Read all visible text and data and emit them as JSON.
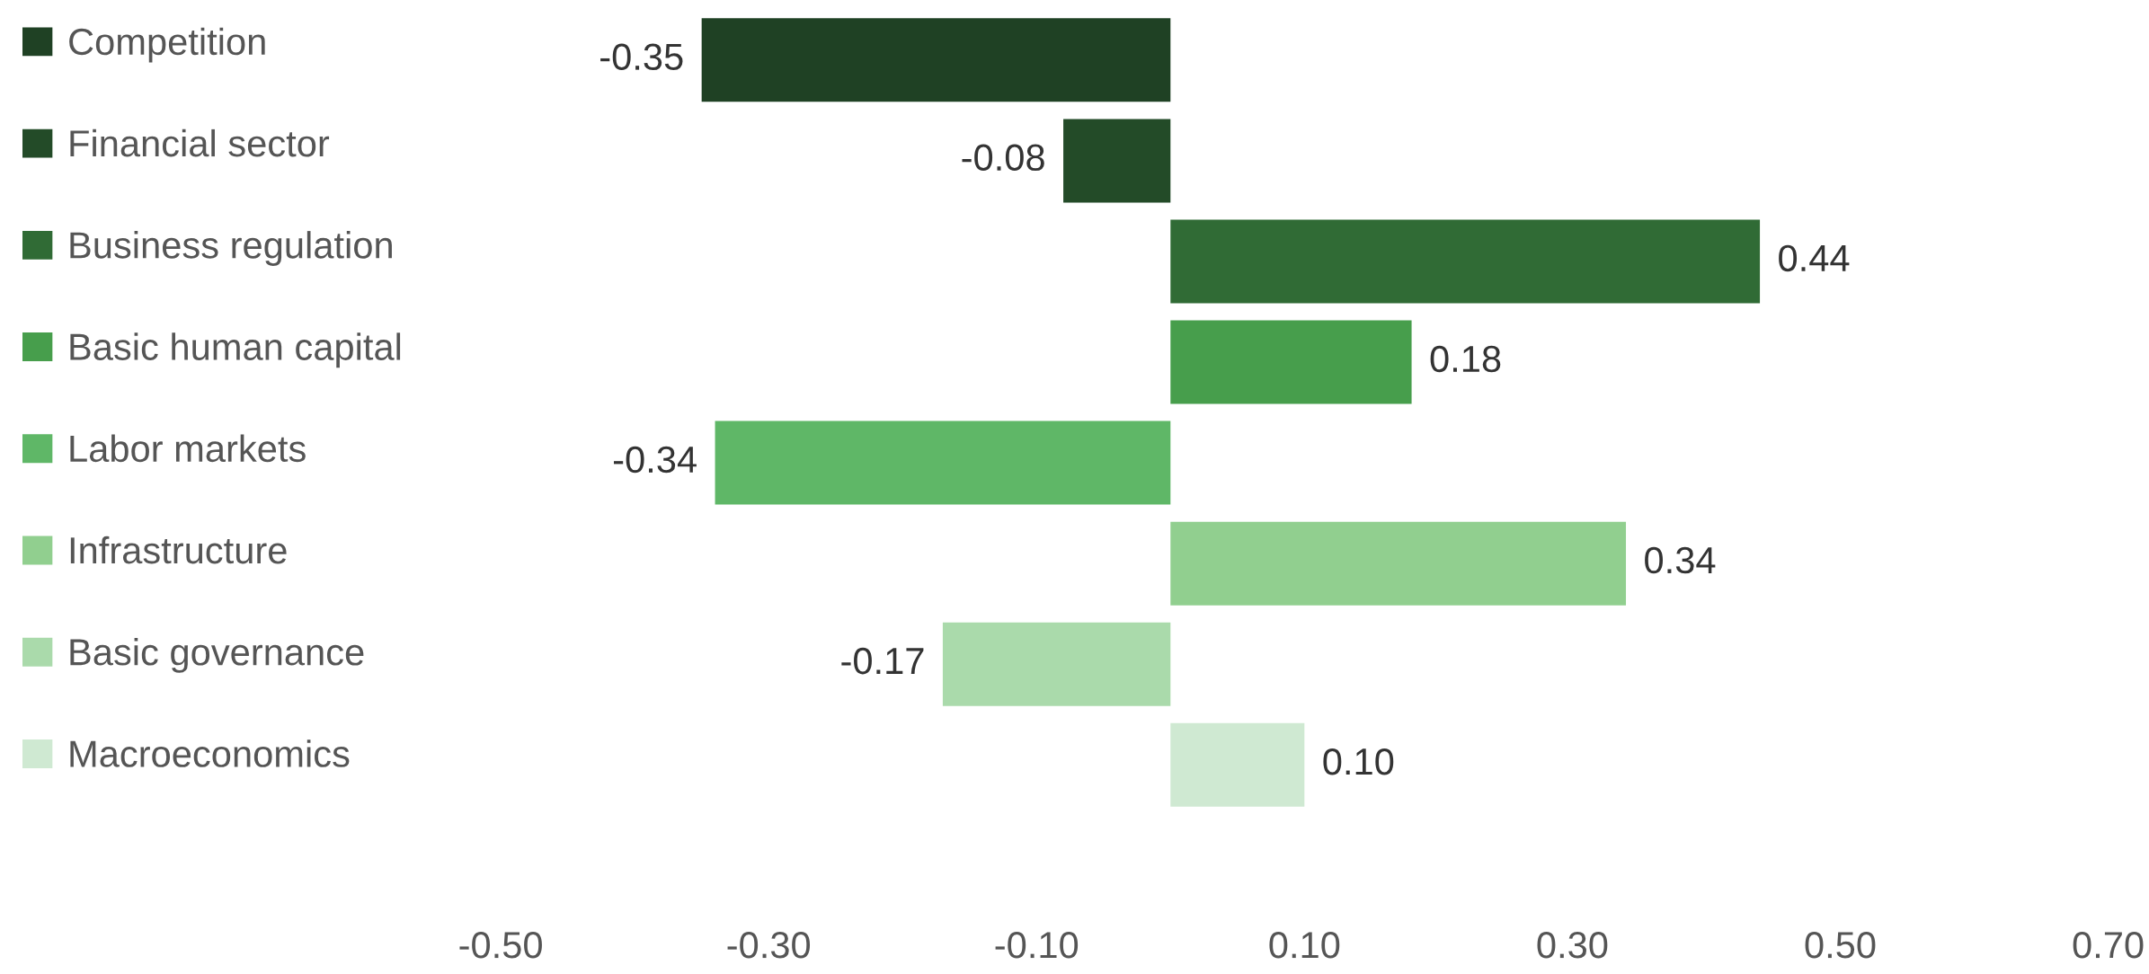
{
  "chart_data": {
    "type": "bar",
    "orientation": "horizontal",
    "categories": [
      null,
      null,
      null,
      null,
      null,
      null,
      null,
      null
    ],
    "stacked": true,
    "series": [
      {
        "name": "Competition",
        "color": "#1f4124",
        "values": [
          -0.35,
          null,
          null,
          null,
          null,
          null,
          null,
          null
        ],
        "value_labels": [
          "-0.35",
          null,
          null,
          null,
          null,
          null,
          null,
          null
        ]
      },
      {
        "name": "Financial sector",
        "color": "#234b28",
        "values": [
          null,
          -0.08,
          null,
          null,
          null,
          null,
          null,
          null
        ],
        "value_labels": [
          null,
          "-0.08",
          null,
          null,
          null,
          null,
          null,
          null
        ]
      },
      {
        "name": "Business regulation",
        "color": "#306b35",
        "values": [
          null,
          null,
          0.44,
          null,
          null,
          null,
          null,
          null
        ],
        "value_labels": [
          null,
          null,
          "0.44",
          null,
          null,
          null,
          null,
          null
        ]
      },
      {
        "name": "Basic human capital",
        "color": "#479e4c",
        "values": [
          null,
          null,
          null,
          0.18,
          null,
          null,
          null,
          null
        ],
        "value_labels": [
          null,
          null,
          null,
          "0.18",
          null,
          null,
          null,
          null
        ]
      },
      {
        "name": "Labor markets",
        "color": "#5fb767",
        "values": [
          null,
          null,
          null,
          null,
          -0.34,
          null,
          null,
          null
        ],
        "value_labels": [
          null,
          null,
          null,
          null,
          "-0.34",
          null,
          null,
          null
        ]
      },
      {
        "name": "Infrastructure",
        "color": "#91cf8f",
        "values": [
          null,
          null,
          null,
          null,
          null,
          0.34,
          null,
          null
        ],
        "value_labels": [
          null,
          null,
          null,
          null,
          null,
          "0.34",
          null,
          null
        ]
      },
      {
        "name": "Basic governance",
        "color": "#aadaab",
        "values": [
          null,
          null,
          null,
          null,
          null,
          null,
          -0.17,
          null
        ],
        "value_labels": [
          null,
          null,
          null,
          null,
          null,
          null,
          "-0.17",
          null
        ]
      },
      {
        "name": "Macroeconomics",
        "color": "#cfe9d2",
        "values": [
          null,
          null,
          null,
          null,
          null,
          null,
          null,
          0.1
        ],
        "value_labels": [
          null,
          null,
          null,
          null,
          null,
          null,
          null,
          "0.10"
        ]
      }
    ],
    "xlim": [
      -0.5,
      0.7
    ],
    "xticks": [
      {
        "value": -0.5,
        "label": "-0.50"
      },
      {
        "value": -0.3,
        "label": "-0.30"
      },
      {
        "value": -0.1,
        "label": "-0.10"
      },
      {
        "value": 0.1,
        "label": "0.10"
      },
      {
        "value": 0.3,
        "label": "0.30"
      },
      {
        "value": 0.5,
        "label": "0.50"
      },
      {
        "value": 0.7,
        "label": "0.70"
      }
    ],
    "legend": "left",
    "grid": false
  }
}
